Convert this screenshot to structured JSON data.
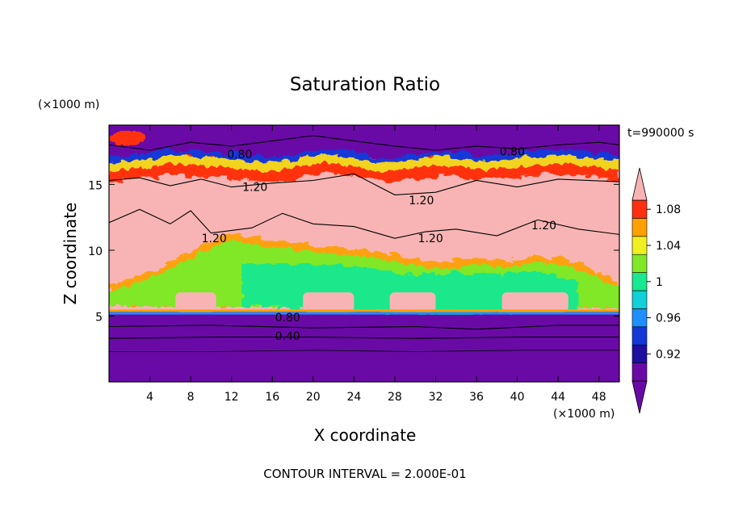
{
  "chart_data": {
    "type": "heatmap",
    "title": "Saturation Ratio",
    "xlabel": "X coordinate",
    "ylabel": "Z coordinate",
    "x_unit": "(×1000 m)",
    "y_unit": "(×1000 m)",
    "xlim": [
      0,
      50
    ],
    "ylim": [
      0,
      19.5
    ],
    "x_ticks": [
      4,
      8,
      12,
      16,
      20,
      24,
      28,
      32,
      36,
      40,
      44,
      48
    ],
    "y_ticks": [
      5,
      10,
      15
    ],
    "time_label": "t=990000 s",
    "footer": "CONTOUR INTERVAL = 2.000E-01",
    "colorbar": {
      "tick_labels": [
        "0.92",
        "0.96",
        "1",
        "1.04",
        "1.08"
      ],
      "tick_values": [
        0.92,
        0.96,
        1.0,
        1.04,
        1.08
      ],
      "levels": [
        0.9,
        0.92,
        0.94,
        0.96,
        0.98,
        1.0,
        1.02,
        1.04,
        1.06,
        1.08,
        1.1
      ],
      "colors": [
        "#6a0aa6",
        "#1e0fa0",
        "#1438d8",
        "#1e8fff",
        "#10d0d8",
        "#18e890",
        "#80e828",
        "#f0f020",
        "#ffa000",
        "#ff3010",
        "#f8b4b4"
      ]
    },
    "contour_labels": [
      {
        "text": "0.80",
        "x": 12.8,
        "y": 17.3
      },
      {
        "text": "0.80",
        "x": 39.5,
        "y": 17.5
      },
      {
        "text": "1.20",
        "x": 14.3,
        "y": 14.8
      },
      {
        "text": "1.20",
        "x": 30.6,
        "y": 13.8
      },
      {
        "text": "1.20",
        "x": 10.3,
        "y": 10.9
      },
      {
        "text": "1.20",
        "x": 31.5,
        "y": 10.9
      },
      {
        "text": "1.20",
        "x": 42.6,
        "y": 11.9
      },
      {
        "text": "0.80",
        "x": 17.5,
        "y": 4.9
      },
      {
        "text": "0.40",
        "x": 17.5,
        "y": 3.5
      }
    ]
  }
}
